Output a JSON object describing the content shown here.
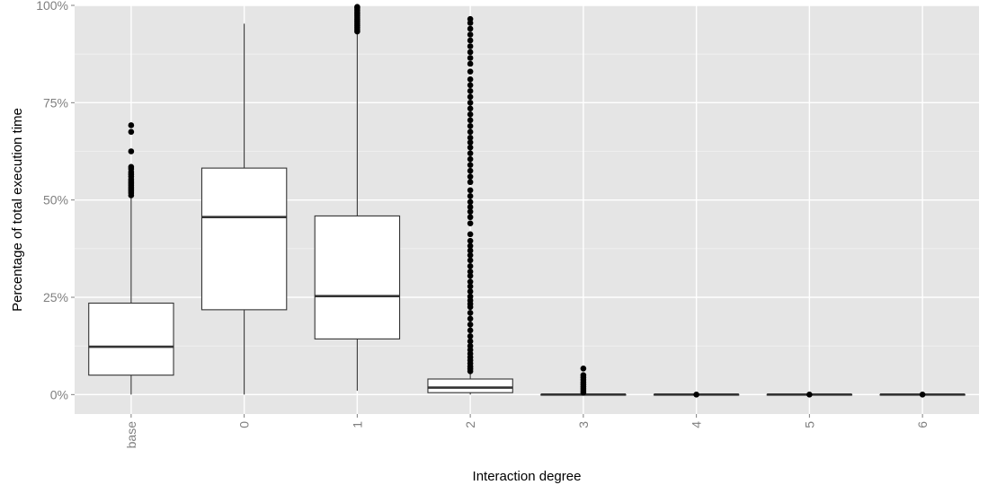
{
  "chart_data": {
    "type": "boxplot",
    "xlabel": "Interaction degree",
    "ylabel": "Percentage of total execution time",
    "categories": [
      "base",
      "0",
      "1",
      "2",
      "3",
      "4",
      "5",
      "6"
    ],
    "ylim": [
      -5,
      100
    ],
    "yticks": [
      0,
      25,
      50,
      75,
      100
    ],
    "ytick_labels": [
      "0%",
      "25%",
      "50%",
      "75%",
      "100%"
    ],
    "grid": true,
    "x_tick_label_rotation": "vertical",
    "boxes": [
      {
        "category": "base",
        "min": 0,
        "q1": 5,
        "median": 12.3,
        "q3": 23.5,
        "max": 50.5,
        "outliers": [
          51.2,
          51.8,
          52.3,
          52.8,
          53.3,
          53.8,
          54.3,
          54.8,
          55.3,
          56,
          56.6,
          57.2,
          58,
          58.5,
          62.5,
          67.5,
          69.2
        ]
      },
      {
        "category": "0",
        "min": 0,
        "q1": 21.8,
        "median": 45.6,
        "q3": 58.2,
        "max": 95.3,
        "outliers": []
      },
      {
        "category": "1",
        "min": 1,
        "q1": 14.3,
        "median": 25.3,
        "q3": 45.9,
        "max": 93,
        "outliers": [
          93.3,
          93.8,
          94.3,
          94.8,
          95.3,
          95.8,
          96.3,
          96.8,
          97.3,
          97.8,
          98.3,
          98.8,
          99.3,
          99.6
        ]
      },
      {
        "category": "2",
        "min": 0,
        "q1": 0.5,
        "median": 1.8,
        "q3": 4,
        "max": 5.5,
        "outliers": [
          6,
          6.6,
          7.2,
          8,
          8.8,
          9.6,
          10.5,
          11.5,
          12.5,
          13.7,
          15,
          16.5,
          18,
          19.5,
          21,
          22.5,
          23.3,
          24.2,
          25.2,
          26.5,
          27.8,
          29,
          30.5,
          31.6,
          33,
          34.5,
          35.8,
          37,
          38.2,
          39.5,
          41.2,
          44,
          45.6,
          47,
          48.2,
          49.5,
          51,
          52.5,
          54.6,
          56,
          57.5,
          59,
          60.5,
          62,
          63.5,
          64.8,
          66,
          67.5,
          69,
          70.5,
          72,
          73.5,
          75,
          76.5,
          78,
          79.5,
          81,
          83,
          85,
          86.5,
          88,
          89.5,
          91,
          92.5,
          94,
          95.5,
          96.5
        ]
      },
      {
        "category": "3",
        "min": 0,
        "q1": 0,
        "median": 0,
        "q3": 0,
        "max": 0,
        "outliers": [
          0.5,
          1,
          1.5,
          2,
          2.6,
          3.2,
          3.8,
          4.4,
          5,
          6.7
        ]
      },
      {
        "category": "4",
        "min": 0,
        "q1": 0,
        "median": 0,
        "q3": 0,
        "max": 0,
        "outliers": [
          0
        ]
      },
      {
        "category": "5",
        "min": 0,
        "q1": 0,
        "median": 0,
        "q3": 0,
        "max": 0,
        "outliers": [
          0
        ]
      },
      {
        "category": "6",
        "min": 0,
        "q1": 0,
        "median": 0,
        "q3": 0,
        "max": 0,
        "outliers": [
          0
        ]
      }
    ],
    "colors": {
      "panel_background": "#e5e5e5",
      "grid_major": "#ffffff",
      "grid_minor": "#f2f2f2",
      "box_fill": "#ffffff",
      "box_stroke": "#333333",
      "median": "#333333",
      "outlier": "#000000",
      "tick_label": "#7f7f7f"
    }
  }
}
